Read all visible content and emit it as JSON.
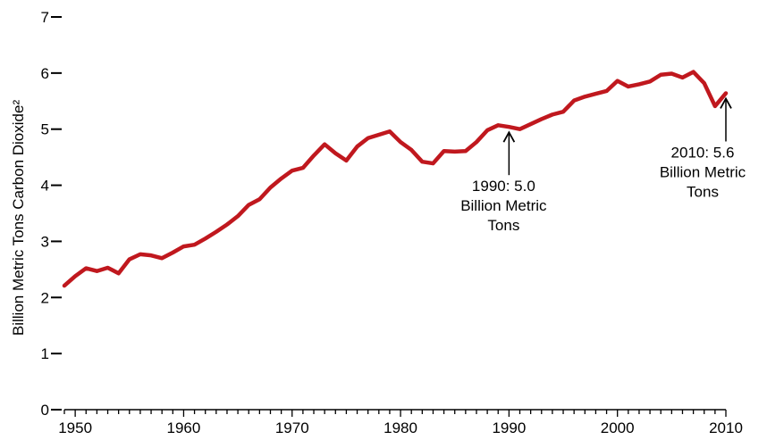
{
  "chart_data": {
    "type": "line",
    "title": "",
    "xlabel": "",
    "ylabel": "Billion Metric Tons Carbon Dioxide²",
    "xlim": [
      1949,
      2010
    ],
    "ylim": [
      0,
      7
    ],
    "x_ticks": [
      1950,
      1960,
      1970,
      1980,
      1990,
      2000,
      2010
    ],
    "y_ticks": [
      0,
      1,
      2,
      3,
      4,
      5,
      6,
      7
    ],
    "grid": false,
    "line_color": "#c0181e",
    "series": [
      {
        "x": [
          1949,
          1950,
          1951,
          1952,
          1953,
          1954,
          1955,
          1956,
          1957,
          1958,
          1959,
          1960,
          1961,
          1962,
          1963,
          1964,
          1965,
          1966,
          1967,
          1968,
          1969,
          1970,
          1971,
          1972,
          1973,
          1974,
          1975,
          1976,
          1977,
          1978,
          1979,
          1980,
          1981,
          1982,
          1983,
          1984,
          1985,
          1986,
          1987,
          1988,
          1989,
          1990,
          1991,
          1992,
          1993,
          1994,
          1995,
          1996,
          1997,
          1998,
          1999,
          2000,
          2001,
          2002,
          2003,
          2004,
          2005,
          2006,
          2007,
          2008,
          2009,
          2010
        ],
        "values": [
          2.21,
          2.38,
          2.52,
          2.47,
          2.53,
          2.43,
          2.68,
          2.77,
          2.75,
          2.7,
          2.8,
          2.91,
          2.94,
          3.05,
          3.17,
          3.3,
          3.45,
          3.65,
          3.75,
          3.96,
          4.12,
          4.26,
          4.31,
          4.53,
          4.73,
          4.57,
          4.44,
          4.69,
          4.84,
          4.9,
          4.96,
          4.77,
          4.63,
          4.42,
          4.39,
          4.61,
          4.6,
          4.61,
          4.77,
          4.98,
          5.07,
          5.04,
          5.0,
          5.09,
          5.18,
          5.26,
          5.31,
          5.51,
          5.58,
          5.63,
          5.68,
          5.86,
          5.76,
          5.8,
          5.85,
          5.97,
          5.99,
          5.92,
          6.02,
          5.82,
          5.41,
          5.64
        ]
      }
    ],
    "annotations": [
      {
        "x": 1990,
        "y": 5.04,
        "lines": [
          "1990:  5.0",
          "Billion Metric",
          "Tons"
        ]
      },
      {
        "x": 2010,
        "y": 5.64,
        "lines": [
          "2010:  5.6",
          "Billion Metric",
          "Tons"
        ]
      }
    ]
  }
}
